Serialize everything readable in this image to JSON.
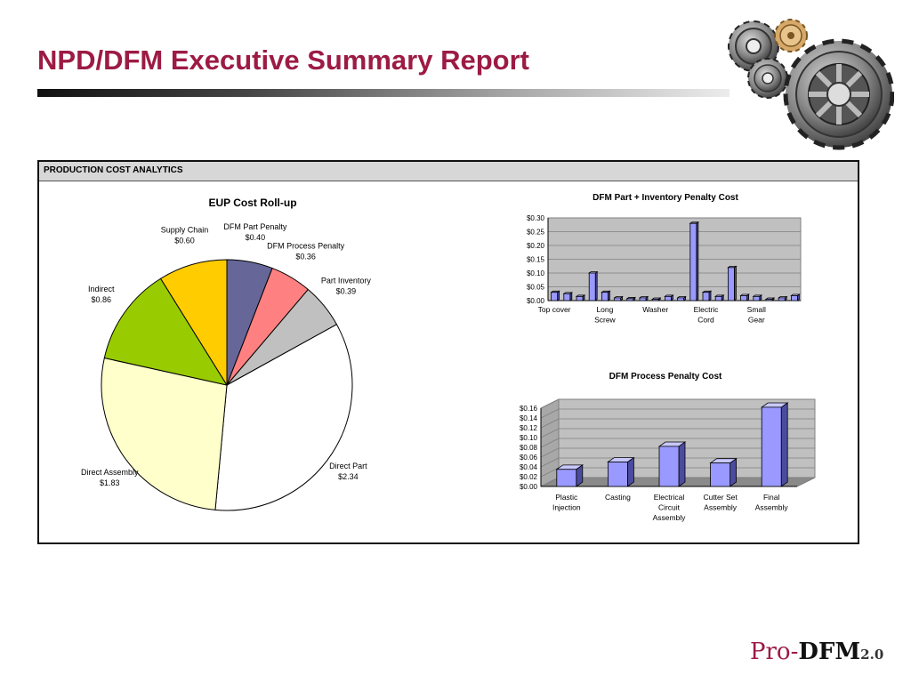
{
  "header": {
    "title": "NPD/DFM Executive Summary Report"
  },
  "panel": {
    "label": "PRODUCTION COST ANALYTICS"
  },
  "logo": {
    "pro": "Pro-",
    "dfm": "DFM",
    "version": "2.0"
  },
  "colors": {
    "title": "#9c1b45",
    "bar_fill": "#9999ff",
    "plot_bg": "#c0c0c0"
  },
  "chart_data": [
    {
      "type": "pie",
      "title": "EUP Cost Roll-up",
      "slices": [
        {
          "label": "DFM Part Penalty",
          "value_label": "$0.40",
          "value": 0.4,
          "color": "#666699"
        },
        {
          "label": "DFM Process Penalty",
          "value_label": "$0.36",
          "value": 0.36,
          "color": "#ff8080"
        },
        {
          "label": "Part Inventory",
          "value_label": "$0.39",
          "value": 0.39,
          "color": "#c0c0c0"
        },
        {
          "label": "Direct Part",
          "value_label": "$2.34",
          "value": 2.34,
          "color": "#ffffff"
        },
        {
          "label": "Direct Assembly",
          "value_label": "$1.83",
          "value": 1.83,
          "color": "#ffffcc"
        },
        {
          "label": "Indirect",
          "value_label": "$0.86",
          "value": 0.86,
          "color": "#99cc00"
        },
        {
          "label": "Supply Chain",
          "value_label": "$0.60",
          "value": 0.6,
          "color": "#ffcc00"
        }
      ]
    },
    {
      "type": "bar",
      "title": "DFM Part + Inventory Penalty Cost",
      "ylim": [
        0,
        0.3
      ],
      "ytick_labels": [
        "$0.00",
        "$0.05",
        "$0.10",
        "$0.15",
        "$0.20",
        "$0.25",
        "$0.30"
      ],
      "x_labels": [
        "Top cover",
        "",
        "",
        "",
        "Long Screw",
        "",
        "",
        "",
        "Washer",
        "",
        "",
        "",
        "Electric Cord",
        "",
        "",
        "",
        "Small Gear",
        "",
        "",
        ""
      ],
      "values": [
        0.03,
        0.025,
        0.015,
        0.1,
        0.03,
        0.01,
        0.007,
        0.01,
        0.005,
        0.015,
        0.01,
        0.28,
        0.03,
        0.015,
        0.12,
        0.018,
        0.015,
        0.005,
        0.01,
        0.018
      ],
      "grid": true,
      "legend": "none"
    },
    {
      "type": "bar",
      "title": "DFM Process Penalty Cost",
      "ylim": [
        0,
        0.16
      ],
      "ytick_labels": [
        "$0.00",
        "$0.02",
        "$0.04",
        "$0.06",
        "$0.08",
        "$0.10",
        "$0.12",
        "$0.14",
        "$0.16"
      ],
      "categories": [
        "Plastic Injection",
        "Casting",
        "Electrical Circuit Assembly",
        "Cutter Set Assembly",
        "Final Assembly"
      ],
      "values": [
        0.035,
        0.05,
        0.082,
        0.048,
        0.162
      ],
      "grid": true,
      "legend": "none"
    }
  ]
}
